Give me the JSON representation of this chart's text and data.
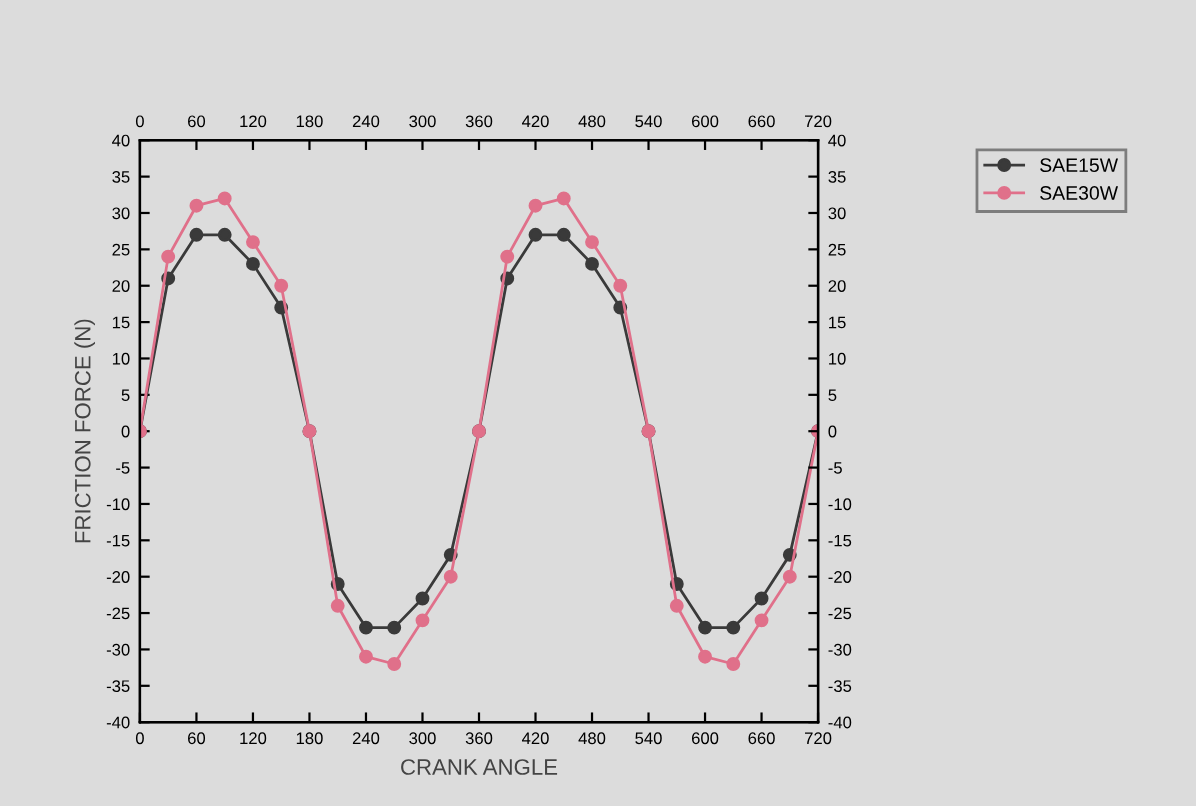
{
  "chart_data": {
    "type": "line",
    "xlabel": "CRANK ANGLE",
    "ylabel": "FRICTION FORCE (N)",
    "x": [
      0,
      30,
      60,
      90,
      120,
      150,
      180,
      210,
      240,
      270,
      300,
      330,
      360,
      390,
      420,
      450,
      480,
      510,
      540,
      570,
      600,
      630,
      660,
      690,
      720
    ],
    "series": [
      {
        "name": "SAE15W",
        "color": "#3a3a3a",
        "values": [
          0,
          21,
          27,
          27,
          23,
          17,
          0,
          -21,
          -27,
          -27,
          -23,
          -17,
          0,
          21,
          27,
          27,
          23,
          17,
          0,
          -21,
          -27,
          -27,
          -23,
          -17,
          0
        ]
      },
      {
        "name": "SAE30W",
        "color": "#e0708a",
        "values": [
          0,
          24,
          31,
          32,
          26,
          20,
          0,
          -24,
          -31,
          -32,
          -26,
          -20,
          0,
          24,
          31,
          32,
          26,
          20,
          0,
          -24,
          -31,
          -32,
          -26,
          -20,
          0
        ]
      }
    ],
    "xlim": [
      0,
      720
    ],
    "xticks": [
      0,
      60,
      120,
      180,
      240,
      300,
      360,
      420,
      480,
      540,
      600,
      660,
      720
    ],
    "x2lim": [
      0,
      720
    ],
    "x2ticks": [
      0,
      60,
      120,
      180,
      240,
      300,
      360,
      420,
      480,
      540,
      600,
      660,
      720
    ],
    "ylim": [
      -40,
      40
    ],
    "yticks": [
      -40,
      -35,
      -30,
      -25,
      -20,
      -15,
      -10,
      -5,
      0,
      5,
      10,
      15,
      20,
      25,
      30,
      35,
      40
    ],
    "y2lim": [
      -40,
      40
    ],
    "y2ticks": [
      -40,
      -35,
      -30,
      -25,
      -20,
      -15,
      -10,
      -5,
      0,
      5,
      10,
      15,
      20,
      25,
      30,
      35,
      40
    ],
    "marker": "circle",
    "line_style": "solid",
    "grid": false,
    "legend": "top right"
  }
}
